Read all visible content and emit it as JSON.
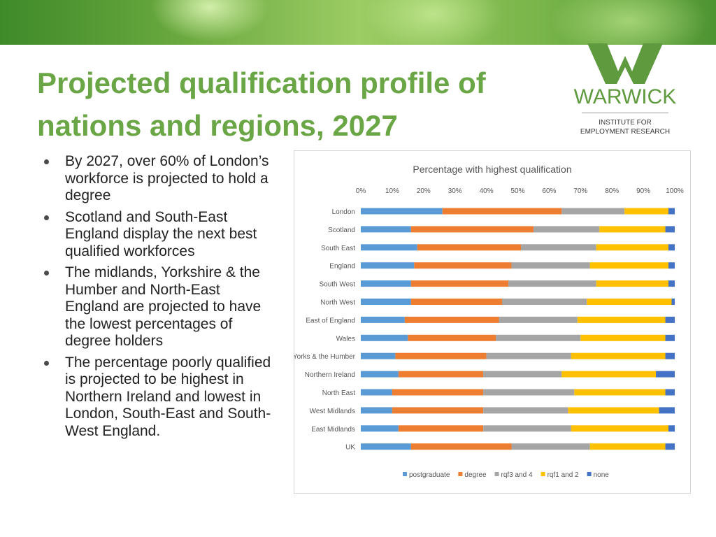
{
  "slide": {
    "title_line1": "Projected qualification profile of",
    "title_line2": "nations and regions, 2027",
    "bullets": [
      "By 2027, over 60% of London’s workforce is projected to hold a degree",
      "Scotland and South-East England display the next best qualified workforces",
      "The midlands,  Yorkshire & the Humber and North-East England are projected to have the lowest percentages of degree holders",
      "The percentage poorly qualified is projected to be highest in Northern Ireland and lowest in London, South-East and South-West England."
    ]
  },
  "logo": {
    "word": "WARWICK",
    "sub_line1": "INSTITUTE FOR",
    "sub_line2": "EMPLOYMENT RESEARCH",
    "color": "#5f9a3f"
  },
  "chart_data": {
    "type": "bar",
    "orientation": "horizontal",
    "stacked": "percent",
    "title": "Percentage with highest qualification",
    "xlabel": "",
    "ylabel": "",
    "xlim": [
      0,
      100
    ],
    "x_ticks": [
      "0%",
      "10%",
      "20%",
      "30%",
      "40%",
      "50%",
      "60%",
      "70%",
      "80%",
      "90%",
      "100%"
    ],
    "grid": false,
    "legend_position": "bottom",
    "categories": [
      "London",
      "Scotland",
      "South East",
      "England",
      "South West",
      "North West",
      "East of England",
      "Wales",
      "Yorks & the Humber",
      "Northern Ireland",
      "North East",
      "West Midlands",
      "East Midlands",
      "UK"
    ],
    "series": [
      {
        "name": "postgraduate",
        "color": "#5b9bd5",
        "values": [
          26,
          16,
          18,
          17,
          16,
          16,
          14,
          15,
          11,
          12,
          10,
          10,
          12,
          16
        ]
      },
      {
        "name": "degree",
        "color": "#ed7d31",
        "values": [
          38,
          39,
          33,
          31,
          31,
          29,
          30,
          28,
          29,
          27,
          29,
          29,
          27,
          32
        ]
      },
      {
        "name": "rqf3 and 4",
        "color": "#a5a5a5",
        "values": [
          20,
          21,
          24,
          25,
          28,
          27,
          25,
          27,
          27,
          25,
          29,
          27,
          28,
          25
        ]
      },
      {
        "name": "rqf1 and 2",
        "color": "#ffc000",
        "values": [
          14,
          21,
          23,
          25,
          23,
          27,
          28,
          27,
          30,
          30,
          29,
          29,
          31,
          24
        ]
      },
      {
        "name": "none",
        "color": "#4472c4",
        "values": [
          2,
          3,
          2,
          2,
          2,
          1,
          3,
          3,
          3,
          6,
          3,
          5,
          2,
          3
        ]
      }
    ]
  }
}
